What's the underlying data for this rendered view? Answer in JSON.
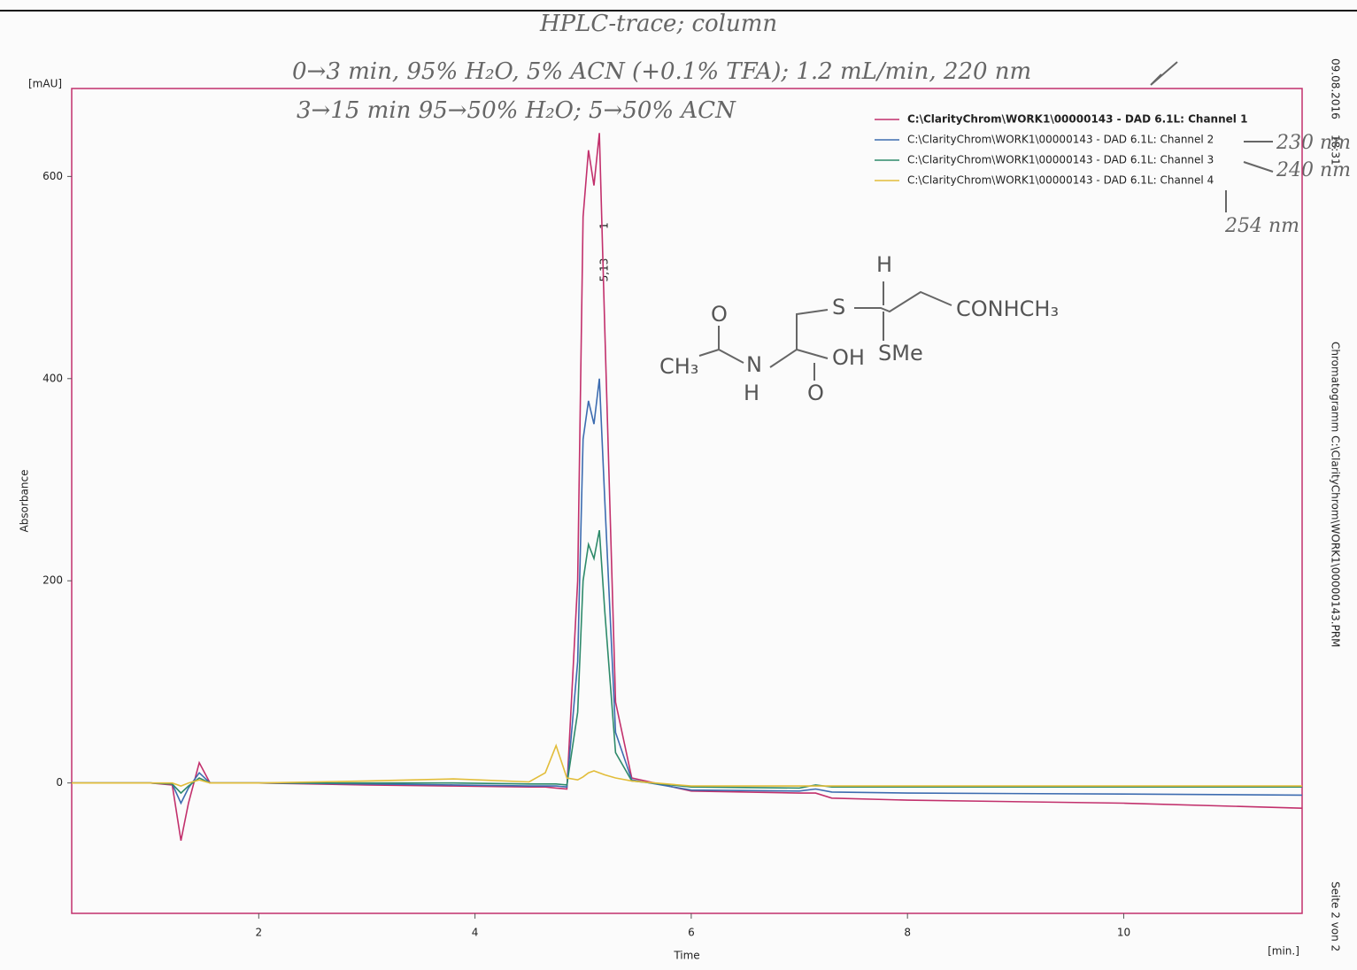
{
  "chart_data": {
    "type": "line",
    "y_unit": "[mAU]",
    "y_label": "Absorbance",
    "x_label": "Time",
    "x_unit": "[min.]",
    "xlim": [
      0.27,
      11.65
    ],
    "ylim": [
      -129,
      687
    ],
    "xticks": [
      2,
      4,
      6,
      8,
      10
    ],
    "yticks": [
      0,
      200,
      400,
      600
    ],
    "grid": false,
    "legend": "top-right",
    "x": [
      0.27,
      1.0,
      1.2,
      1.28,
      1.35,
      1.45,
      1.55,
      2.0,
      3.0,
      3.8,
      4.5,
      4.65,
      4.75,
      4.85,
      4.95,
      5.0,
      5.05,
      5.1,
      5.15,
      5.2,
      5.3,
      5.45,
      6.0,
      7.0,
      7.15,
      7.3,
      8.0,
      10.0,
      11.65
    ],
    "series": [
      {
        "name": "C:\\ClarityChrom\\WORK1\\00000143 - DAD 6.1L: Channel 1",
        "color": "#c2306c",
        "values": [
          0,
          0,
          -2,
          -57,
          -20,
          20,
          0,
          0,
          -2,
          -3,
          -4,
          -4,
          -5,
          -6,
          200,
          560,
          626,
          591,
          643,
          450,
          80,
          5,
          -8,
          -10,
          -10,
          -15,
          -17,
          -20,
          -25
        ]
      },
      {
        "name": "C:\\ClarityChrom\\WORK1\\00000143 - DAD 6.1L: Channel 2",
        "color": "#3d6cb0",
        "values": [
          0,
          0,
          -1,
          -20,
          -5,
          10,
          0,
          0,
          -1,
          -2,
          -3,
          -3,
          -3,
          -4,
          120,
          340,
          378,
          355,
          400,
          280,
          50,
          3,
          -7,
          -8,
          -6,
          -9,
          -10,
          -11,
          -12
        ]
      },
      {
        "name": "C:\\ClarityChrom\\WORK1\\00000143 - DAD 6.1L: Channel 3",
        "color": "#2e8a6a",
        "values": [
          0,
          0,
          -1,
          -10,
          -3,
          5,
          0,
          0,
          0,
          0,
          -1,
          -1,
          -1,
          -2,
          70,
          200,
          236,
          222,
          250,
          170,
          30,
          2,
          -4,
          -5,
          -2,
          -4,
          -4,
          -4,
          -4
        ]
      },
      {
        "name": "C:\\ClarityChrom\\WORK1\\00000143 - DAD 6.1L: Channel 4",
        "color": "#e2bd3a",
        "values": [
          0,
          0,
          0,
          -3,
          0,
          3,
          0,
          0,
          2,
          4,
          1,
          10,
          37,
          5,
          3,
          6,
          10,
          12,
          10,
          8,
          5,
          2,
          -3,
          -3,
          -3,
          -3,
          -3,
          -3,
          -3
        ]
      }
    ],
    "peak_label": "5,13",
    "peak_number": "1",
    "date": "09.08.2016",
    "time": "18:31",
    "file": "Chromatogramm C:\\ClarityChrom\\WORK1\\00000143.PRM",
    "page": "Seite 2 von 2",
    "annotations": [
      "HPLC-trace; column",
      "0→3 min, 95% H₂O, 5% ACN (+0.1% TFA); 1.2 mL/min, 220 nm",
      "3→15 min 95→50% H₂O; 5→50% ACN",
      "230 nm",
      "240 nm",
      "254 nm"
    ],
    "structure_labels": [
      "H",
      "S",
      "CONHCH₃",
      "O",
      "CH₃",
      "N",
      "H",
      "OH",
      "SMe",
      "O"
    ]
  }
}
